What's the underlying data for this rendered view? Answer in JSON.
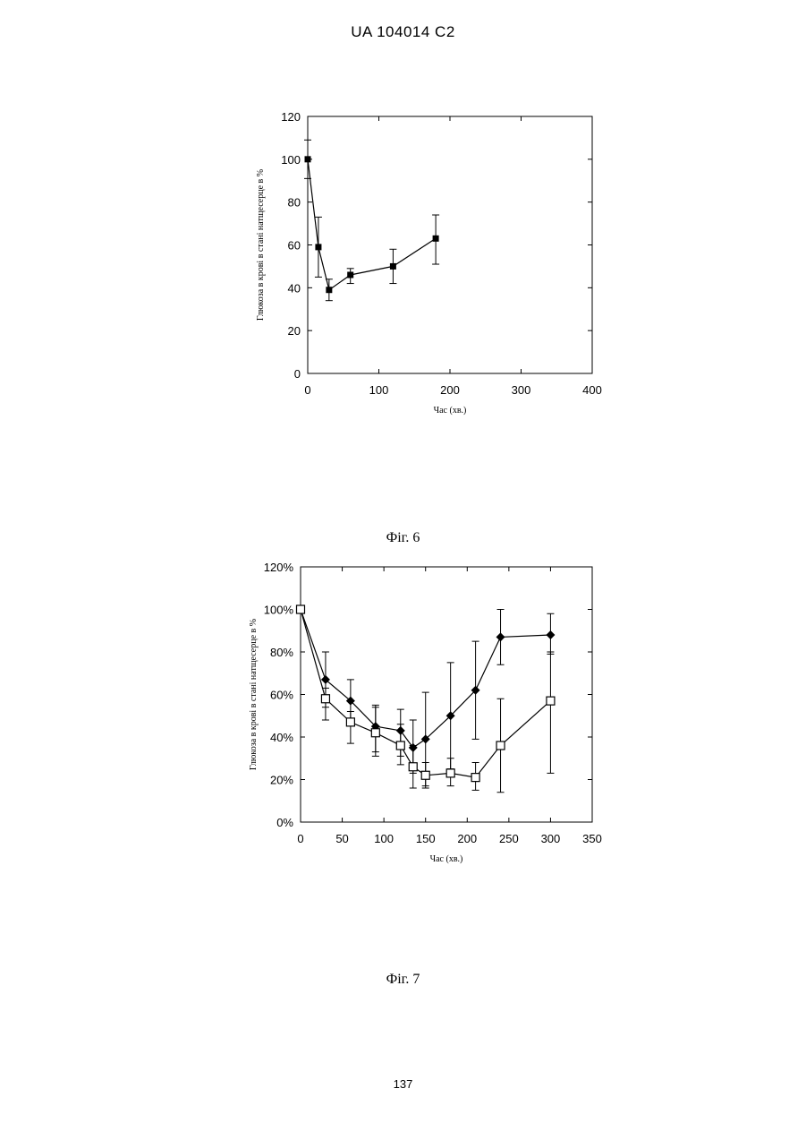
{
  "page": {
    "header": "UA   104014   C2",
    "page_number": "137"
  },
  "chart_data": [
    {
      "type": "line",
      "caption": "Фіг. 6",
      "xlabel": "Час (хв.)",
      "ylabel": "Глюкоза в крові в стані натщесерце в %",
      "xlim": [
        0,
        400
      ],
      "ylim": [
        0,
        120
      ],
      "x_ticks": [
        "0",
        "100",
        "200",
        "300",
        "400"
      ],
      "y_ticks": [
        "0",
        "20",
        "40",
        "60",
        "80",
        "100",
        "120"
      ],
      "grid": false,
      "series": [
        {
          "marker": "filled-square",
          "x": [
            0,
            15,
            30,
            60,
            120,
            180
          ],
          "y": [
            100,
            59,
            39,
            46,
            50,
            63
          ],
          "err_low": [
            91,
            45,
            34,
            42,
            42,
            51
          ],
          "err_high": [
            109,
            73,
            44,
            49,
            58,
            74
          ]
        }
      ]
    },
    {
      "type": "line",
      "caption": "Фіг. 7",
      "xlabel": "Час (хв.)",
      "ylabel": "Глюкоза в крові в стані натщесерце в %",
      "xlim": [
        0,
        350
      ],
      "ylim": [
        0,
        120
      ],
      "y_format": "percent",
      "x_ticks": [
        "0",
        "50",
        "100",
        "150",
        "200",
        "250",
        "300",
        "350"
      ],
      "y_ticks": [
        "0%",
        "20%",
        "40%",
        "60%",
        "80%",
        "100%",
        "120%"
      ],
      "grid": false,
      "series": [
        {
          "marker": "filled-diamond",
          "x": [
            0,
            30,
            60,
            90,
            120,
            135,
            150,
            180,
            210,
            240,
            300
          ],
          "y": [
            100,
            67,
            57,
            45,
            43,
            35,
            39,
            50,
            62,
            87,
            88
          ],
          "err_low": [
            100,
            54,
            47,
            33,
            31,
            23,
            17,
            25,
            39,
            74,
            79
          ],
          "err_high": [
            100,
            80,
            67,
            55,
            53,
            48,
            61,
            75,
            85,
            100,
            98
          ]
        },
        {
          "marker": "open-square",
          "x": [
            0,
            30,
            60,
            90,
            120,
            135,
            150,
            180,
            210,
            240,
            300
          ],
          "y": [
            100,
            58,
            47,
            42,
            36,
            26,
            22,
            23,
            21,
            36,
            57
          ],
          "err_low": [
            100,
            48,
            37,
            31,
            27,
            16,
            16,
            17,
            15,
            14,
            23
          ],
          "err_high": [
            100,
            63,
            52,
            54,
            46,
            36,
            28,
            30,
            28,
            58,
            80
          ]
        }
      ]
    }
  ]
}
